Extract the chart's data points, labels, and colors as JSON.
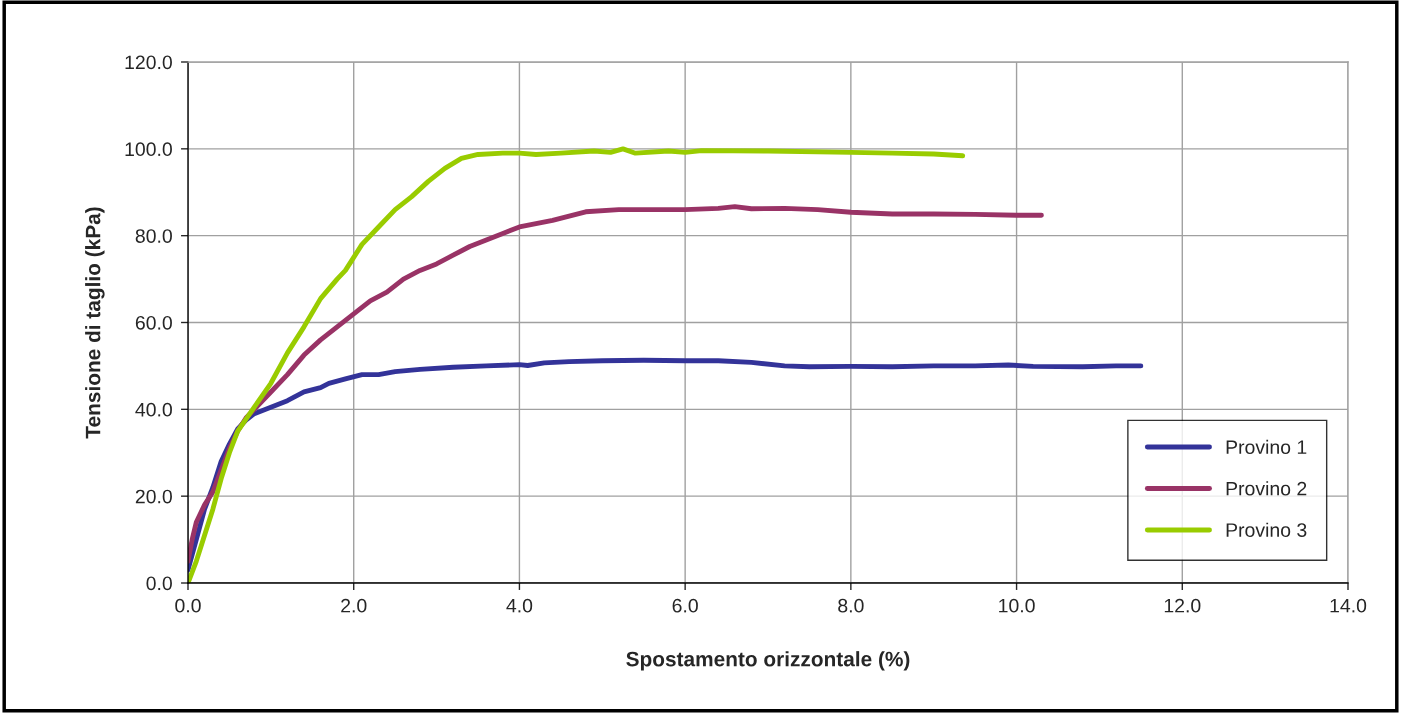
{
  "chart_data": {
    "type": "line",
    "xlabel": "Spostamento orizzontale (%)",
    "ylabel": "Tensione di taglio (kPa)",
    "xlim": [
      0,
      14
    ],
    "ylim": [
      0,
      120
    ],
    "xticks": [
      {
        "value": 0,
        "label": "0.0"
      },
      {
        "value": 2,
        "label": "2.0"
      },
      {
        "value": 4,
        "label": "4.0"
      },
      {
        "value": 6,
        "label": "6.0"
      },
      {
        "value": 8,
        "label": "8.0"
      },
      {
        "value": 10,
        "label": "10.0"
      },
      {
        "value": 12,
        "label": "12.0"
      },
      {
        "value": 14,
        "label": "14.0"
      }
    ],
    "yticks": [
      {
        "value": 0,
        "label": "0.0"
      },
      {
        "value": 20,
        "label": "20.0"
      },
      {
        "value": 40,
        "label": "40.0"
      },
      {
        "value": 60,
        "label": "60.0"
      },
      {
        "value": 80,
        "label": "80.0"
      },
      {
        "value": 100,
        "label": "100.0"
      },
      {
        "value": 120,
        "label": "120.0"
      }
    ],
    "grid": true,
    "legend": "bottom right",
    "marker": "none",
    "line_style": "solid",
    "series": [
      {
        "name": "Provino 1",
        "color": "#333399",
        "x": [
          0,
          0.1,
          0.2,
          0.3,
          0.4,
          0.5,
          0.6,
          0.7,
          0.8,
          1.0,
          1.2,
          1.4,
          1.6,
          1.7,
          1.9,
          2.1,
          2.3,
          2.5,
          2.8,
          3.2,
          3.6,
          4.0,
          4.1,
          4.3,
          4.6,
          5.0,
          5.5,
          6.0,
          6.4,
          6.8,
          7.2,
          7.5,
          8.0,
          8.5,
          9.0,
          9.5,
          9.9,
          10.2,
          10.8,
          11.2,
          11.5
        ],
        "values": [
          3,
          10,
          17,
          22,
          28,
          32,
          35.5,
          37.5,
          39,
          40.5,
          42,
          44,
          45,
          46,
          47,
          48,
          48,
          48.7,
          49.2,
          49.7,
          50,
          50.3,
          50.1,
          50.7,
          51,
          51.2,
          51.3,
          51.2,
          51.2,
          50.8,
          50,
          49.8,
          49.9,
          49.8,
          50,
          50,
          50.2,
          49.9,
          49.8,
          50,
          50
        ]
      },
      {
        "name": "Provino 2",
        "color": "#993366",
        "x": [
          0,
          0.05,
          0.1,
          0.2,
          0.3,
          0.4,
          0.5,
          0.6,
          0.7,
          0.8,
          1.0,
          1.2,
          1.4,
          1.6,
          1.8,
          2.0,
          2.2,
          2.4,
          2.6,
          2.8,
          3.0,
          3.2,
          3.4,
          3.6,
          3.8,
          4.0,
          4.4,
          4.8,
          5.2,
          5.6,
          6.0,
          6.4,
          6.6,
          6.8,
          7.2,
          7.6,
          8.0,
          8.5,
          9.0,
          9.5,
          10.0,
          10.3
        ],
        "values": [
          5,
          10,
          14,
          18,
          21,
          26,
          31,
          35,
          38,
          40,
          44,
          48,
          52.5,
          56,
          59,
          62,
          65,
          67,
          70,
          72,
          73.5,
          75.5,
          77.5,
          79,
          80.5,
          82,
          83.5,
          85.5,
          86,
          86,
          86,
          86.3,
          86.7,
          86.2,
          86.3,
          86,
          85.4,
          85,
          85,
          84.9,
          84.7,
          84.7
        ]
      },
      {
        "name": "Provino 3",
        "color": "#99cc00",
        "x": [
          0,
          0.1,
          0.2,
          0.3,
          0.4,
          0.5,
          0.6,
          0.8,
          1.0,
          1.2,
          1.4,
          1.6,
          1.8,
          1.9,
          2.0,
          2.1,
          2.3,
          2.5,
          2.7,
          2.9,
          3.1,
          3.3,
          3.5,
          3.8,
          4.0,
          4.2,
          4.5,
          4.9,
          5.1,
          5.25,
          5.4,
          5.8,
          6.0,
          6.2,
          7.0,
          8.0,
          8.5,
          9.0,
          9.35
        ],
        "values": [
          0,
          5,
          11,
          17,
          24,
          30,
          35,
          40.5,
          46,
          53,
          59,
          65.5,
          70,
          72,
          75,
          78,
          82,
          86,
          89,
          92.5,
          95.5,
          97.8,
          98.7,
          99,
          99,
          98.7,
          99,
          99.5,
          99.2,
          100,
          99,
          99.5,
          99.2,
          99.6,
          99.5,
          99.2,
          99,
          98.8,
          98.4
        ]
      }
    ]
  }
}
